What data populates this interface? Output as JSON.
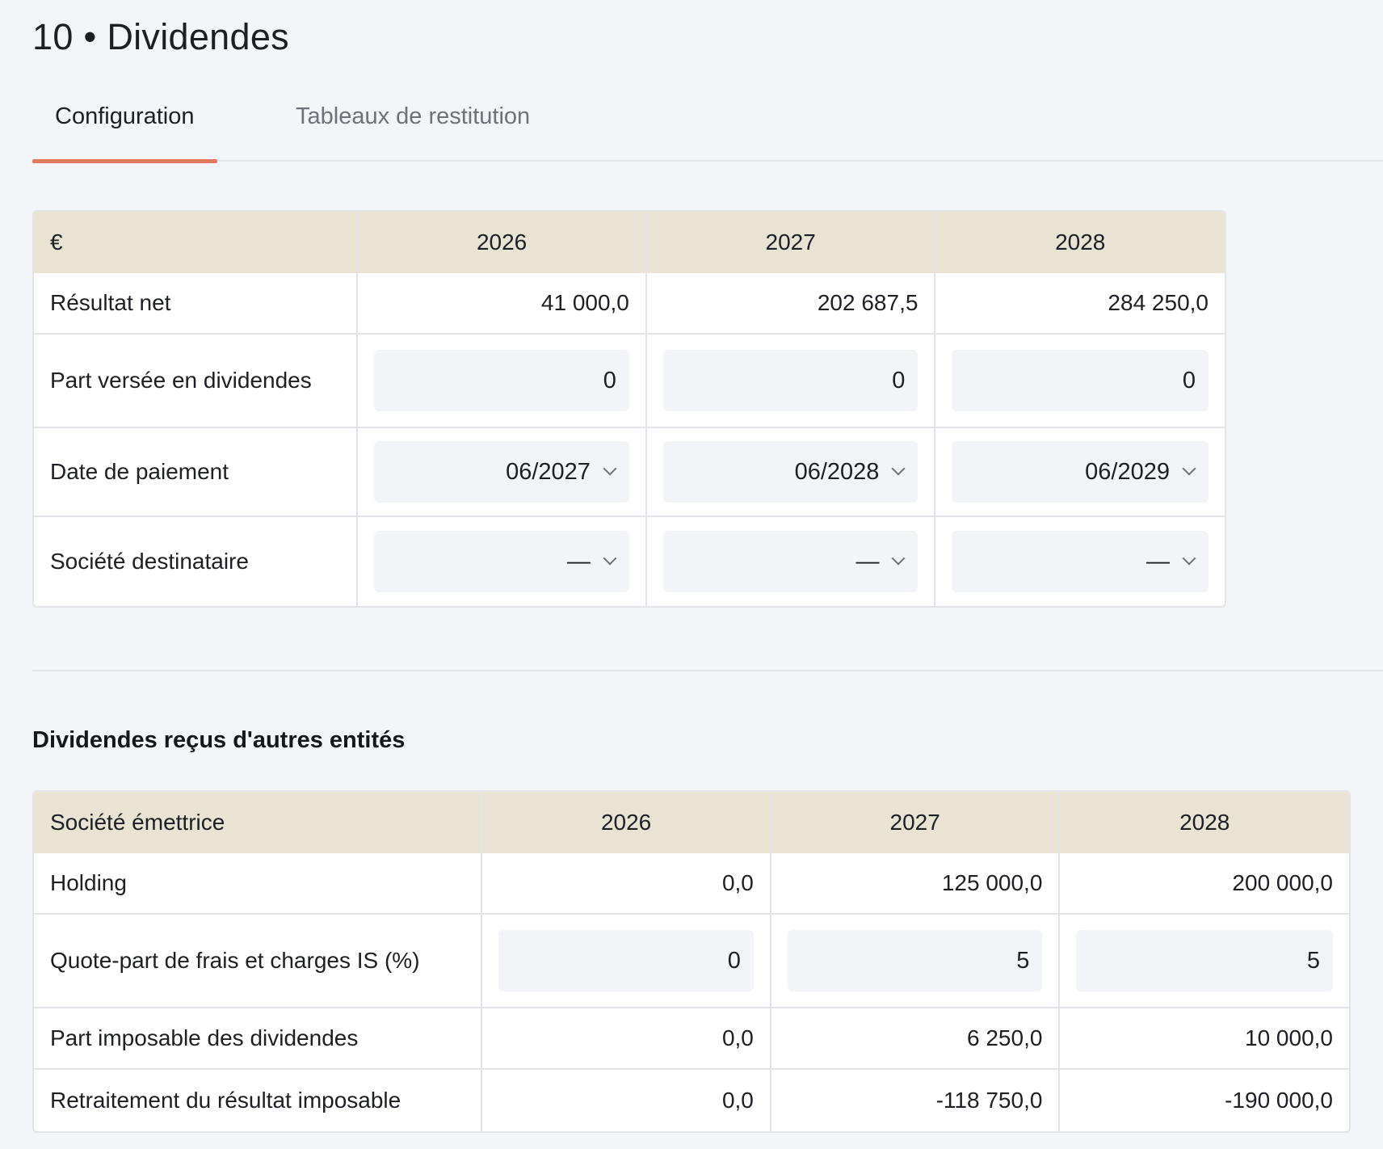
{
  "page": {
    "title": "10 • Dividendes"
  },
  "tabs": [
    {
      "label": "Configuration",
      "active": true
    },
    {
      "label": "Tableaux de restitution",
      "active": false
    }
  ],
  "accent_color": "#e2795e",
  "header_color": "#e8e3d3",
  "dividends_table": {
    "currency": "€",
    "years": [
      "2026",
      "2027",
      "2028"
    ],
    "rows": {
      "net_result": {
        "label": "Résultat net",
        "values": [
          "41 000,0",
          "202 687,5",
          "284 250,0"
        ]
      },
      "payout_share": {
        "label": "Part versée en dividendes",
        "values": [
          "0",
          "0",
          "0"
        ]
      },
      "payment_date": {
        "label": "Date de paiement",
        "values": [
          "06/2027",
          "06/2028",
          "06/2029"
        ]
      },
      "recipient_company": {
        "label": "Société destinataire",
        "values": [
          "—",
          "—",
          "—"
        ]
      }
    }
  },
  "received_section": {
    "title": "Dividendes reçus d'autres entités",
    "header_label": "Société émettrice",
    "years": [
      "2026",
      "2027",
      "2028"
    ],
    "rows": {
      "holding": {
        "label": "Holding",
        "values": [
          "0,0",
          "125 000,0",
          "200 000,0"
        ]
      },
      "fees_share": {
        "label": "Quote-part de frais et charges IS (%)",
        "values": [
          "0",
          "5",
          "5"
        ]
      },
      "taxable_share": {
        "label": "Part imposable des dividendes",
        "values": [
          "0,0",
          "6 250,0",
          "10 000,0"
        ]
      },
      "tax_restatement": {
        "label": "Retraitement du résultat imposable",
        "values": [
          "0,0",
          "-118 750,0",
          "-190 000,0"
        ]
      }
    }
  }
}
